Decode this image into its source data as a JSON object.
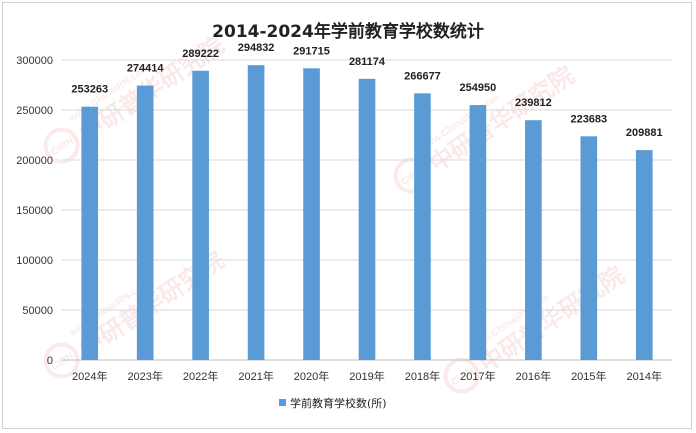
{
  "chart_data": {
    "type": "bar",
    "title": "2014-2024年学前教育学校数统计",
    "categories": [
      "2024年",
      "2023年",
      "2022年",
      "2021年",
      "2020年",
      "2019年",
      "2018年",
      "2017年",
      "2016年",
      "2015年",
      "2014年"
    ],
    "series": [
      {
        "name": "学前教育学校数(所)",
        "values": [
          253263,
          274414,
          289222,
          294832,
          291715,
          281174,
          266677,
          254950,
          239812,
          223683,
          209881
        ],
        "color": "#5b9bd5"
      }
    ],
    "ylim": [
      0,
      300000
    ],
    "yticks": [
      "0",
      "50000",
      "100000",
      "150000",
      "200000",
      "250000",
      "300000"
    ],
    "grid": true,
    "legend_position": "bottom",
    "xlabel": "",
    "ylabel": ""
  },
  "watermark": {
    "text": "中研普华研究院",
    "site": "www.ChinaIRN.com",
    "logo": "CIRN"
  }
}
